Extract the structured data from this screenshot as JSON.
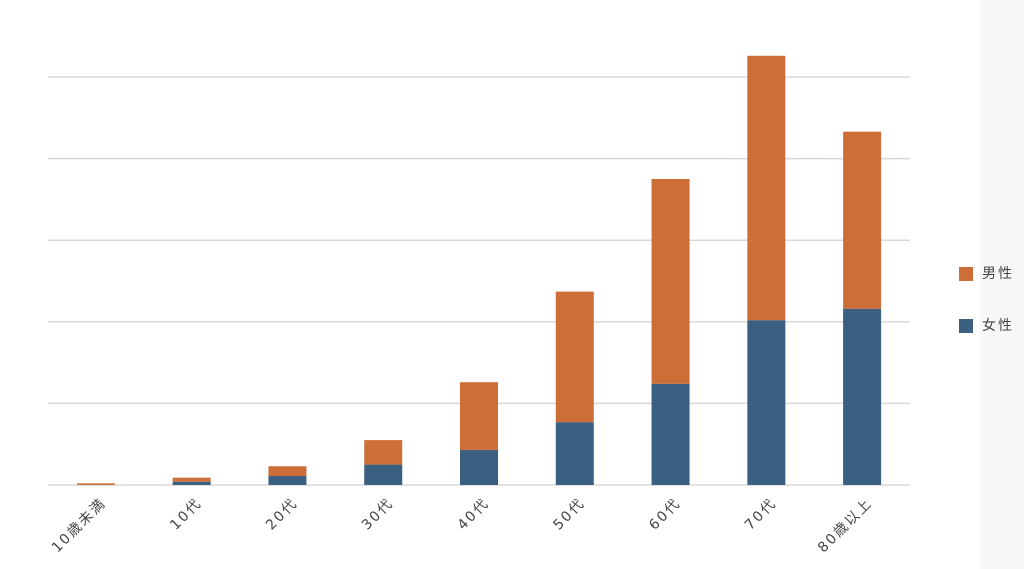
{
  "chart_data": {
    "type": "stacked-bar",
    "categories": [
      "10歳未満",
      "10代",
      "20代",
      "30代",
      "40代",
      "50代",
      "60代",
      "70代",
      "80歳以上"
    ],
    "series": [
      {
        "name": "女性",
        "color": "#3a5f80",
        "values": [
          0,
          0.04,
          0.11,
          0.25,
          0.43,
          0.77,
          1.24,
          2.02,
          2.16
        ]
      },
      {
        "name": "男性",
        "color": "#cd6e38",
        "values": [
          0.02,
          0.05,
          0.12,
          0.3,
          0.83,
          1.6,
          2.51,
          3.24,
          2.17
        ]
      }
    ],
    "ylim": [
      0,
      5.3
    ],
    "yticks": [
      0,
      1,
      2,
      3,
      4,
      5
    ],
    "grid": true,
    "legend": "right"
  }
}
